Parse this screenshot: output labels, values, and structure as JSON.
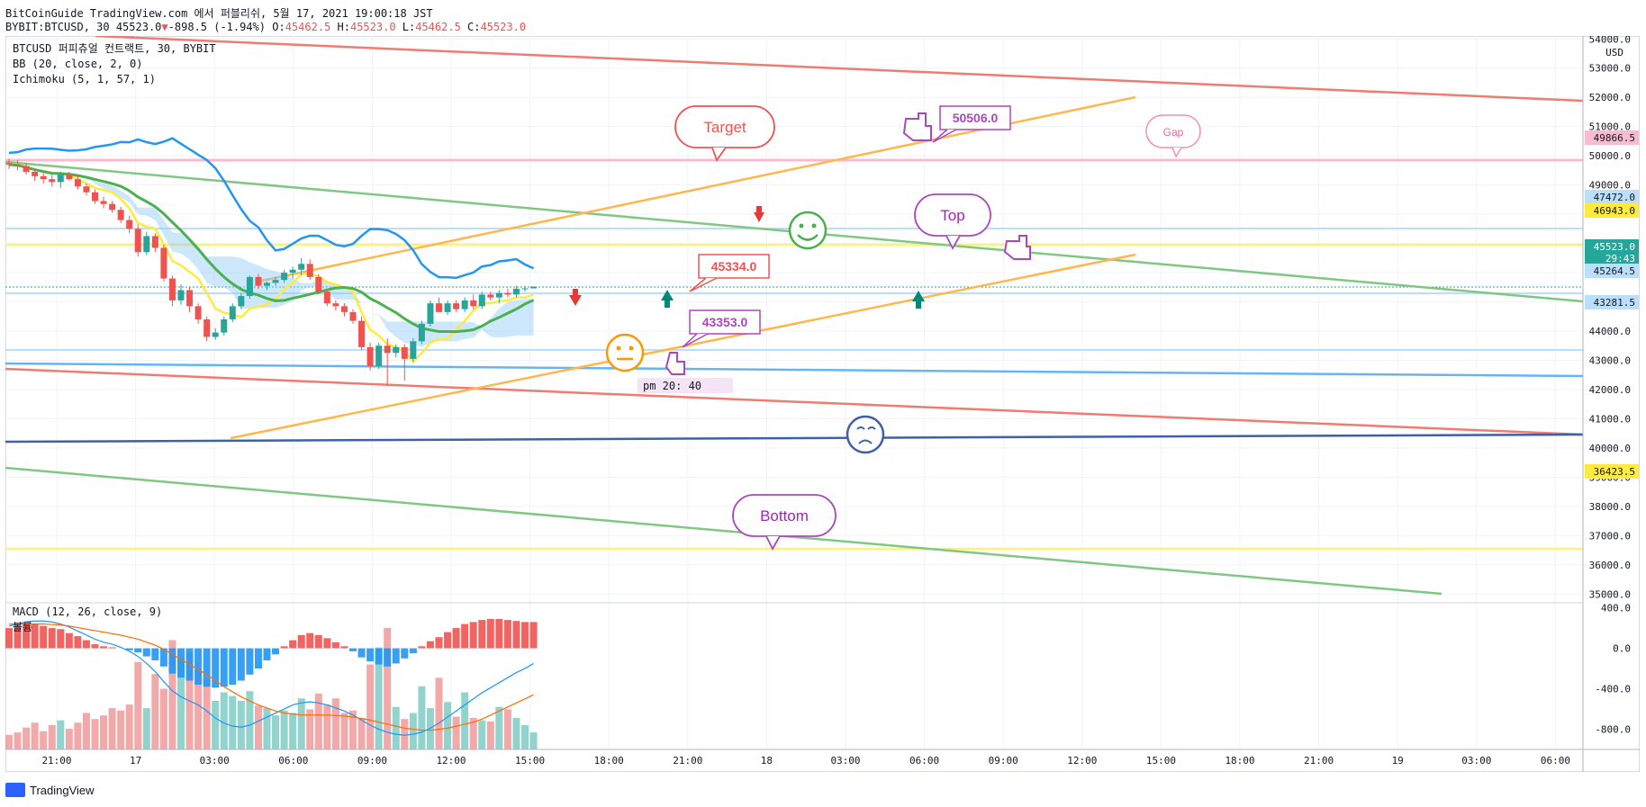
{
  "header": {
    "published": "BitCoinGuide TradingView.com 에서 퍼블리쉬, 5월 17, 2021 19:00:18 JST",
    "symbol": "BYBIT:BTCUSD, 30",
    "last": "45523.0",
    "change": "-898.5 (-1.94%)",
    "o_label": "O:",
    "o": "45462.5",
    "h_label": "H:",
    "h": "45523.0",
    "l_label": "L:",
    "l": "45462.5",
    "c_label": "C:",
    "c": "45523.0"
  },
  "legend": {
    "title": "BTCUSD 퍼피츄얼 컨트랙트, 30, BYBIT",
    "bb": "BB (20, close, 2, 0)",
    "ichimoku": "Ichimoku (5, 1, 57, 1)",
    "macd": "MACD (12, 26, close, 9)",
    "volume": "볼륨"
  },
  "footer": {
    "brand": "TradingView"
  },
  "chart_data": [
    {
      "type": "candlestick",
      "currency": "USD",
      "ylim": [
        34700,
        54100
      ],
      "yticks": [
        "35000.0",
        "36000.0",
        "37000.0",
        "38000.0",
        "39000.0",
        "40000.0",
        "41000.0",
        "42000.0",
        "43000.0",
        "44000.0",
        "45000.0",
        "46000.0",
        "47000.0",
        "48000.0",
        "49000.0",
        "50000.0",
        "51000.0",
        "52000.0",
        "53000.0",
        "54000.0"
      ],
      "x_labels": [
        "21:00",
        "17",
        "03:00",
        "06:00",
        "09:00",
        "12:00",
        "15:00",
        "18:00",
        "21:00",
        "18",
        "03:00",
        "06:00",
        "09:00",
        "12:00",
        "15:00",
        "18:00",
        "21:00",
        "19",
        "03:00",
        "06:00"
      ],
      "candles_ohlc": [
        [
          49750,
          49900,
          49550,
          49700
        ],
        [
          49700,
          49850,
          49500,
          49650
        ],
        [
          49650,
          49750,
          49350,
          49450
        ],
        [
          49450,
          49550,
          49150,
          49300
        ],
        [
          49300,
          49400,
          49050,
          49200
        ],
        [
          49200,
          49350,
          48950,
          49100
        ],
        [
          49100,
          49450,
          48900,
          49350
        ],
        [
          49350,
          49450,
          49150,
          49200
        ],
        [
          49200,
          49350,
          48850,
          48950
        ],
        [
          48950,
          49050,
          48650,
          48750
        ],
        [
          48750,
          48850,
          48350,
          48450
        ],
        [
          48450,
          48600,
          48200,
          48350
        ],
        [
          48350,
          48450,
          48050,
          48150
        ],
        [
          48150,
          48250,
          47700,
          47800
        ],
        [
          47800,
          47950,
          47350,
          47500
        ],
        [
          47500,
          47650,
          46550,
          46700
        ],
        [
          46700,
          47400,
          46600,
          47250
        ],
        [
          47250,
          47350,
          46700,
          46850
        ],
        [
          46850,
          46950,
          45700,
          45800
        ],
        [
          45800,
          45900,
          44850,
          45050
        ],
        [
          45050,
          45600,
          44900,
          45400
        ],
        [
          45400,
          45500,
          44650,
          44850
        ],
        [
          44850,
          44950,
          44250,
          44400
        ],
        [
          44400,
          44500,
          43650,
          43800
        ],
        [
          43800,
          44100,
          43700,
          43950
        ],
        [
          43950,
          44500,
          43850,
          44400
        ],
        [
          44400,
          44950,
          44300,
          44850
        ],
        [
          44850,
          45300,
          44750,
          45200
        ],
        [
          45200,
          45900,
          45100,
          45850
        ],
        [
          45850,
          45950,
          45450,
          45550
        ],
        [
          45550,
          45700,
          45400,
          45650
        ],
        [
          45650,
          45850,
          45550,
          45750
        ],
        [
          45750,
          46100,
          45650,
          46000
        ],
        [
          46000,
          46200,
          45800,
          46100
        ],
        [
          46100,
          46500,
          45900,
          46300
        ],
        [
          46300,
          46450,
          45750,
          45850
        ],
        [
          45850,
          45950,
          45250,
          45350
        ],
        [
          45350,
          45450,
          44850,
          44950
        ],
        [
          44950,
          45050,
          44700,
          44850
        ],
        [
          44850,
          44950,
          44500,
          44650
        ],
        [
          44650,
          44750,
          44250,
          44350
        ],
        [
          44350,
          44500,
          43350,
          43450
        ],
        [
          43450,
          43600,
          42650,
          42800
        ],
        [
          42800,
          43600,
          42700,
          43500
        ],
        [
          43500,
          43750,
          42150,
          43250
        ],
        [
          43250,
          43550,
          43100,
          43450
        ],
        [
          43450,
          43550,
          42300,
          43050
        ],
        [
          43050,
          43750,
          42950,
          43650
        ],
        [
          43650,
          44350,
          43550,
          44250
        ],
        [
          44250,
          45050,
          44150,
          44950
        ],
        [
          44950,
          45150,
          44750,
          44650
        ],
        [
          44650,
          45050,
          44550,
          44950
        ],
        [
          44950,
          45050,
          44650,
          44750
        ],
        [
          44750,
          45150,
          44650,
          45050
        ],
        [
          45050,
          45250,
          44750,
          44850
        ],
        [
          44850,
          45350,
          44750,
          45250
        ],
        [
          45250,
          45350,
          45050,
          45150
        ],
        [
          45150,
          45400,
          44950,
          45300
        ],
        [
          45300,
          45450,
          45150,
          45250
        ],
        [
          45250,
          45550,
          45150,
          45450
        ],
        [
          45450,
          45550,
          45350,
          45462.5
        ],
        [
          45462.5,
          45523,
          45462.5,
          45523
        ]
      ],
      "price_labels": [
        {
          "value": "49866.5",
          "color": "#f8bbd0"
        },
        {
          "value": "47472.0",
          "color": "#bbdefb"
        },
        {
          "value": "46943.0",
          "color": "#ffeb3b"
        },
        {
          "value": "45523.0",
          "color": "#26a69a"
        },
        {
          "value": "29:43",
          "color": "#26a69a"
        },
        {
          "value": "45264.5",
          "color": "#bbdefb"
        },
        {
          "value": "43281.5",
          "color": "#bbdefb"
        },
        {
          "value": "36423.5",
          "color": "#ffeb3b"
        }
      ],
      "annotations": {
        "callouts": [
          "Target",
          "Top",
          "Bottom",
          "Gap"
        ],
        "price_tags": [
          "50506.0",
          "45334.0",
          "43353.0"
        ],
        "time_note": "pm 20: 40"
      },
      "colors": {
        "up": "#26a69a",
        "down": "#ef5350",
        "bb_basis": "#4caf50",
        "bb_upper": "#2196f3",
        "ichimoku_base": "#ffeb3b",
        "cloud": "#90caf9",
        "resistance": "#f44336",
        "trend": "#4caf50",
        "channel": "#ff9800"
      }
    },
    {
      "type": "bar",
      "name": "MACD",
      "ylim": [
        -1000,
        450
      ],
      "yticks": [
        "400.0",
        "0.0",
        "-400.0",
        "-800.0"
      ],
      "histogram": [
        200,
        230,
        250,
        240,
        220,
        200,
        190,
        150,
        120,
        80,
        40,
        20,
        10,
        0,
        -20,
        -40,
        -80,
        -120,
        -180,
        -250,
        -290,
        -320,
        -360,
        -380,
        -390,
        -380,
        -360,
        -320,
        -260,
        -200,
        -120,
        -60,
        20,
        80,
        130,
        150,
        130,
        100,
        60,
        20,
        -30,
        -90,
        -130,
        -160,
        -180,
        -150,
        -100,
        -50,
        20,
        70,
        110,
        160,
        200,
        240,
        260,
        280,
        290,
        290,
        280,
        270,
        260,
        260
      ],
      "macd": [
        220,
        240,
        260,
        270,
        270,
        260,
        240,
        210,
        170,
        130,
        90,
        60,
        40,
        10,
        -30,
        -80,
        -150,
        -230,
        -330,
        -420,
        -480,
        -520,
        -560,
        -620,
        -690,
        -740,
        -770,
        -780,
        -760,
        -720,
        -680,
        -640,
        -600,
        -560,
        -540,
        -530,
        -540,
        -560,
        -590,
        -620,
        -660,
        -710,
        -760,
        -800,
        -830,
        -850,
        -860,
        -850,
        -830,
        -790,
        -740,
        -680,
        -620,
        -560,
        -500,
        -440,
        -390,
        -340,
        -290,
        -240,
        -200,
        -150
      ],
      "signal": [
        240,
        240,
        240,
        240,
        240,
        235,
        230,
        220,
        205,
        190,
        175,
        160,
        145,
        130,
        110,
        90,
        60,
        30,
        -10,
        -60,
        -110,
        -160,
        -210,
        -260,
        -320,
        -380,
        -430,
        -480,
        -520,
        -560,
        -590,
        -620,
        -640,
        -650,
        -660,
        -660,
        -660,
        -660,
        -665,
        -670,
        -680,
        -695,
        -710,
        -730,
        -750,
        -770,
        -790,
        -800,
        -810,
        -810,
        -800,
        -790,
        -770,
        -750,
        -730,
        -700,
        -660,
        -620,
        -580,
        -540,
        -500,
        -460
      ],
      "volume": [
        0.12,
        0.14,
        0.18,
        0.22,
        0.15,
        0.2,
        0.24,
        0.17,
        0.22,
        0.3,
        0.25,
        0.28,
        0.34,
        0.32,
        0.37,
        0.72,
        0.34,
        0.62,
        0.5,
        0.9,
        0.75,
        0.8,
        0.65,
        0.58,
        0.4,
        0.47,
        0.44,
        0.4,
        0.48,
        0.36,
        0.34,
        0.28,
        0.32,
        0.3,
        0.42,
        0.33,
        0.46,
        0.37,
        0.42,
        0.3,
        0.32,
        0.26,
        0.7,
        0.84,
        1.0,
        0.35,
        0.25,
        0.3,
        0.52,
        0.34,
        0.59,
        0.39,
        0.27,
        0.47,
        0.26,
        0.24,
        0.23,
        0.35,
        0.33,
        0.26,
        0.2,
        0.14
      ]
    }
  ]
}
